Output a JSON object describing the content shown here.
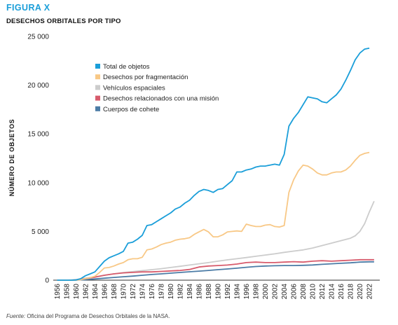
{
  "figure_label": "FIGURA X",
  "title": "DESECHOS ORBITALES POR TIPO",
  "source": {
    "label": "Fuente:",
    "text": " Oficina del Programa de Desechos Orbitales de la NASA."
  },
  "chart_data": {
    "type": "line",
    "title": "DESECHOS ORBITALES POR TIPO",
    "xlabel": "",
    "ylabel": "NÚMERO DE OBJETOS",
    "xlim": [
      1956,
      2023
    ],
    "ylim": [
      0,
      25000
    ],
    "x_ticks": [
      1956,
      1958,
      1960,
      1962,
      1964,
      1966,
      1968,
      1970,
      1972,
      1974,
      1976,
      1978,
      1980,
      1982,
      1984,
      1986,
      1988,
      1990,
      1992,
      1994,
      1996,
      1998,
      2000,
      2002,
      2004,
      2006,
      2008,
      2010,
      2012,
      2014,
      2016,
      2018,
      2020,
      2022
    ],
    "y_ticks": [
      0,
      5000,
      10000,
      15000,
      20000,
      25000
    ],
    "y_tick_labels": [
      "0",
      "5 000",
      "10 000",
      "15 000",
      "20 000",
      "25 000"
    ],
    "grid": false,
    "legend_position": "top-left",
    "series": [
      {
        "name": "Total de objetos",
        "color": "#1a9ed9",
        "points": [
          [
            1956,
            0
          ],
          [
            1957,
            0
          ],
          [
            1958,
            0
          ],
          [
            1959,
            0
          ],
          [
            1960,
            20
          ],
          [
            1961,
            150
          ],
          [
            1962,
            450
          ],
          [
            1963,
            650
          ],
          [
            1964,
            850
          ],
          [
            1965,
            1400
          ],
          [
            1966,
            1950
          ],
          [
            1967,
            2300
          ],
          [
            1968,
            2500
          ],
          [
            1969,
            2700
          ],
          [
            1970,
            2950
          ],
          [
            1971,
            3800
          ],
          [
            1972,
            3900
          ],
          [
            1973,
            4200
          ],
          [
            1974,
            4600
          ],
          [
            1975,
            5600
          ],
          [
            1976,
            5700
          ],
          [
            1977,
            6000
          ],
          [
            1978,
            6300
          ],
          [
            1979,
            6600
          ],
          [
            1980,
            6900
          ],
          [
            1981,
            7300
          ],
          [
            1982,
            7500
          ],
          [
            1983,
            7900
          ],
          [
            1984,
            8200
          ],
          [
            1985,
            8700
          ],
          [
            1986,
            9100
          ],
          [
            1987,
            9300
          ],
          [
            1988,
            9200
          ],
          [
            1989,
            9000
          ],
          [
            1990,
            9300
          ],
          [
            1991,
            9400
          ],
          [
            1992,
            9800
          ],
          [
            1993,
            10200
          ],
          [
            1994,
            11100
          ],
          [
            1995,
            11100
          ],
          [
            1996,
            11300
          ],
          [
            1997,
            11400
          ],
          [
            1998,
            11600
          ],
          [
            1999,
            11700
          ],
          [
            2000,
            11700
          ],
          [
            2001,
            11800
          ],
          [
            2002,
            11900
          ],
          [
            2003,
            11800
          ],
          [
            2004,
            12900
          ],
          [
            2005,
            15800
          ],
          [
            2006,
            16600
          ],
          [
            2007,
            17200
          ],
          [
            2008,
            18000
          ],
          [
            2009,
            18800
          ],
          [
            2010,
            18700
          ],
          [
            2011,
            18600
          ],
          [
            2012,
            18300
          ],
          [
            2013,
            18200
          ],
          [
            2014,
            18600
          ],
          [
            2015,
            19000
          ],
          [
            2016,
            19600
          ],
          [
            2017,
            20500
          ],
          [
            2018,
            21500
          ],
          [
            2019,
            22600
          ],
          [
            2020,
            23300
          ],
          [
            2021,
            23700
          ],
          [
            2022,
            23800
          ]
        ]
      },
      {
        "name": "Desechos por fragmentación",
        "color": "#f8c886",
        "points": [
          [
            1956,
            0
          ],
          [
            1957,
            0
          ],
          [
            1958,
            0
          ],
          [
            1959,
            0
          ],
          [
            1960,
            0
          ],
          [
            1961,
            50
          ],
          [
            1962,
            150
          ],
          [
            1963,
            250
          ],
          [
            1964,
            400
          ],
          [
            1965,
            800
          ],
          [
            1966,
            1250
          ],
          [
            1967,
            1300
          ],
          [
            1968,
            1450
          ],
          [
            1969,
            1650
          ],
          [
            1970,
            1800
          ],
          [
            1971,
            2100
          ],
          [
            1972,
            2200
          ],
          [
            1973,
            2200
          ],
          [
            1974,
            2350
          ],
          [
            1975,
            3100
          ],
          [
            1976,
            3200
          ],
          [
            1977,
            3400
          ],
          [
            1978,
            3650
          ],
          [
            1979,
            3800
          ],
          [
            1980,
            3900
          ],
          [
            1981,
            4100
          ],
          [
            1982,
            4200
          ],
          [
            1983,
            4250
          ],
          [
            1984,
            4350
          ],
          [
            1985,
            4700
          ],
          [
            1986,
            4950
          ],
          [
            1987,
            5200
          ],
          [
            1988,
            4950
          ],
          [
            1989,
            4450
          ],
          [
            1990,
            4450
          ],
          [
            1991,
            4650
          ],
          [
            1992,
            4950
          ],
          [
            1993,
            5000
          ],
          [
            1994,
            5050
          ],
          [
            1995,
            5000
          ],
          [
            1996,
            5750
          ],
          [
            1997,
            5600
          ],
          [
            1998,
            5500
          ],
          [
            1999,
            5500
          ],
          [
            2000,
            5650
          ],
          [
            2001,
            5700
          ],
          [
            2002,
            5500
          ],
          [
            2003,
            5450
          ],
          [
            2004,
            5600
          ],
          [
            2005,
            9000
          ],
          [
            2006,
            10300
          ],
          [
            2007,
            11200
          ],
          [
            2008,
            11800
          ],
          [
            2009,
            11700
          ],
          [
            2010,
            11400
          ],
          [
            2011,
            11000
          ],
          [
            2012,
            10800
          ],
          [
            2013,
            10800
          ],
          [
            2014,
            11000
          ],
          [
            2015,
            11100
          ],
          [
            2016,
            11100
          ],
          [
            2017,
            11300
          ],
          [
            2018,
            11700
          ],
          [
            2019,
            12300
          ],
          [
            2020,
            12800
          ],
          [
            2021,
            13000
          ],
          [
            2022,
            13100
          ]
        ]
      },
      {
        "name": "Vehículos espaciales",
        "color": "#cccccc",
        "points": [
          [
            1956,
            0
          ],
          [
            1957,
            0
          ],
          [
            1958,
            0
          ],
          [
            1959,
            20
          ],
          [
            1960,
            60
          ],
          [
            1962,
            200
          ],
          [
            1964,
            350
          ],
          [
            1966,
            500
          ],
          [
            1968,
            650
          ],
          [
            1970,
            780
          ],
          [
            1972,
            880
          ],
          [
            1974,
            980
          ],
          [
            1976,
            1080
          ],
          [
            1978,
            1180
          ],
          [
            1980,
            1300
          ],
          [
            1982,
            1420
          ],
          [
            1984,
            1550
          ],
          [
            1986,
            1680
          ],
          [
            1988,
            1800
          ],
          [
            1990,
            1950
          ],
          [
            1992,
            2080
          ],
          [
            1994,
            2200
          ],
          [
            1996,
            2320
          ],
          [
            1998,
            2450
          ],
          [
            2000,
            2580
          ],
          [
            2002,
            2700
          ],
          [
            2004,
            2850
          ],
          [
            2006,
            2980
          ],
          [
            2008,
            3100
          ],
          [
            2010,
            3300
          ],
          [
            2012,
            3550
          ],
          [
            2014,
            3800
          ],
          [
            2016,
            4050
          ],
          [
            2018,
            4300
          ],
          [
            2019,
            4550
          ],
          [
            2020,
            5000
          ],
          [
            2021,
            5800
          ],
          [
            2022,
            7000
          ],
          [
            2023,
            8100
          ]
        ]
      },
      {
        "name": "Desechos relacionados con una misión",
        "color": "#d75b6c",
        "points": [
          [
            1956,
            0
          ],
          [
            1957,
            0
          ],
          [
            1958,
            0
          ],
          [
            1959,
            0
          ],
          [
            1960,
            20
          ],
          [
            1962,
            150
          ],
          [
            1964,
            300
          ],
          [
            1966,
            500
          ],
          [
            1968,
            650
          ],
          [
            1970,
            750
          ],
          [
            1972,
            800
          ],
          [
            1974,
            850
          ],
          [
            1976,
            850
          ],
          [
            1978,
            900
          ],
          [
            1980,
            950
          ],
          [
            1982,
            1000
          ],
          [
            1984,
            1100
          ],
          [
            1986,
            1350
          ],
          [
            1988,
            1450
          ],
          [
            1990,
            1500
          ],
          [
            1992,
            1550
          ],
          [
            1994,
            1650
          ],
          [
            1996,
            1800
          ],
          [
            1998,
            1850
          ],
          [
            2000,
            1800
          ],
          [
            2002,
            1800
          ],
          [
            2004,
            1850
          ],
          [
            2006,
            1900
          ],
          [
            2008,
            1850
          ],
          [
            2010,
            1950
          ],
          [
            2012,
            2000
          ],
          [
            2014,
            1950
          ],
          [
            2016,
            2000
          ],
          [
            2018,
            2050
          ],
          [
            2020,
            2100
          ],
          [
            2022,
            2100
          ],
          [
            2023,
            2100
          ]
        ]
      },
      {
        "name": "Cuerpos de cohete",
        "color": "#4c7ca6",
        "points": [
          [
            1956,
            0
          ],
          [
            1957,
            0
          ],
          [
            1958,
            0
          ],
          [
            1959,
            0
          ],
          [
            1960,
            10
          ],
          [
            1962,
            50
          ],
          [
            1964,
            120
          ],
          [
            1966,
            200
          ],
          [
            1968,
            280
          ],
          [
            1970,
            350
          ],
          [
            1972,
            420
          ],
          [
            1974,
            500
          ],
          [
            1976,
            580
          ],
          [
            1978,
            650
          ],
          [
            1980,
            720
          ],
          [
            1982,
            790
          ],
          [
            1984,
            860
          ],
          [
            1986,
            930
          ],
          [
            1988,
            1000
          ],
          [
            1990,
            1080
          ],
          [
            1992,
            1150
          ],
          [
            1994,
            1230
          ],
          [
            1996,
            1320
          ],
          [
            1998,
            1400
          ],
          [
            2000,
            1450
          ],
          [
            2002,
            1480
          ],
          [
            2004,
            1500
          ],
          [
            2006,
            1500
          ],
          [
            2008,
            1520
          ],
          [
            2010,
            1560
          ],
          [
            2012,
            1620
          ],
          [
            2014,
            1680
          ],
          [
            2016,
            1730
          ],
          [
            2018,
            1780
          ],
          [
            2020,
            1850
          ],
          [
            2022,
            1880
          ],
          [
            2023,
            1880
          ]
        ]
      }
    ]
  }
}
